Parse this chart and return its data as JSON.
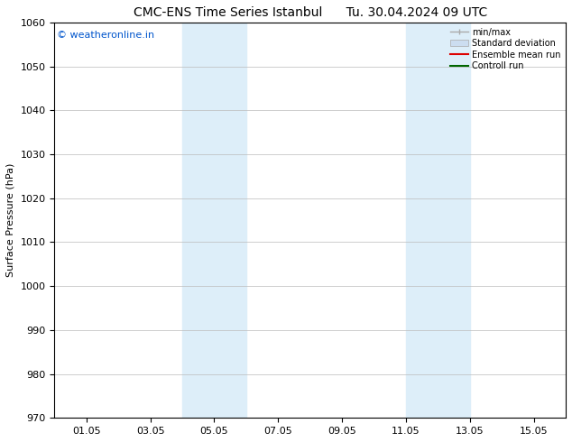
{
  "title_left": "CMC-ENS Time Series Istanbul",
  "title_right": "Tu. 30.04.2024 09 UTC",
  "ylabel": "Surface Pressure (hPa)",
  "ylim": [
    970,
    1060
  ],
  "yticks": [
    970,
    980,
    990,
    1000,
    1010,
    1020,
    1030,
    1040,
    1050,
    1060
  ],
  "xtick_labels": [
    "01.05",
    "03.05",
    "05.05",
    "07.05",
    "09.05",
    "11.05",
    "13.05",
    "15.05"
  ],
  "xtick_positions": [
    1,
    3,
    5,
    7,
    9,
    11,
    13,
    15
  ],
  "xlim": [
    0.0,
    16.0
  ],
  "shaded_bands": [
    {
      "x_start": 4.0,
      "x_end": 6.0
    },
    {
      "x_start": 11.0,
      "x_end": 13.0
    }
  ],
  "shade_color": "#ddeef9",
  "watermark_text": "© weatheronline.in",
  "watermark_color": "#0055cc",
  "legend_entries": [
    {
      "label": "min/max",
      "color": "#aaaaaa",
      "lw": 1.0
    },
    {
      "label": "Standard deviation",
      "color": "#ccddf0",
      "lw": 8
    },
    {
      "label": "Ensemble mean run",
      "color": "#dd0000",
      "lw": 1.5
    },
    {
      "label": "Controll run",
      "color": "#006600",
      "lw": 1.5
    }
  ],
  "bg_color": "#ffffff",
  "grid_color": "#bbbbbb",
  "title_fontsize": 10,
  "axis_fontsize": 8,
  "tick_fontsize": 8,
  "watermark_fontsize": 8
}
